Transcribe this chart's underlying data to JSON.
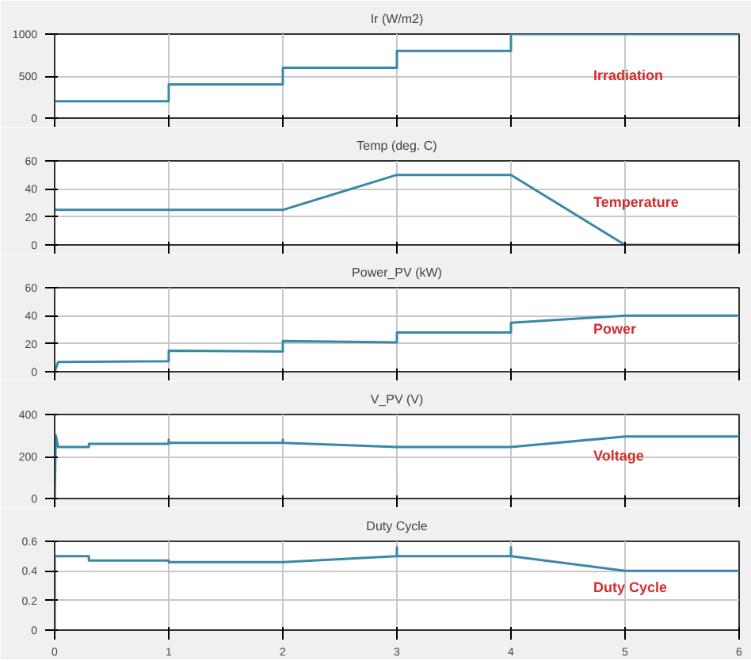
{
  "chart_data": [
    {
      "type": "line",
      "title": "Ir (W/m2)",
      "annotations": [
        "Irradiation"
      ],
      "xlim": [
        0,
        6
      ],
      "xticks": [
        0,
        1,
        2,
        3,
        4,
        5,
        6
      ],
      "ylim": [
        0,
        1000
      ],
      "yticks": [
        0,
        500,
        1000
      ],
      "grid": true,
      "tick_labels": "y",
      "series": [
        {
          "color": "#3a87a8",
          "x": [
            0,
            1,
            1,
            2,
            2,
            3,
            3,
            4,
            4,
            6
          ],
          "values": [
            200,
            200,
            400,
            400,
            600,
            600,
            800,
            800,
            1000,
            1000
          ]
        }
      ]
    },
    {
      "type": "line",
      "title": "Temp (deg. C)",
      "annotations": [
        "Temperature"
      ],
      "xlim": [
        0,
        6
      ],
      "xticks": [
        0,
        1,
        2,
        3,
        4,
        5,
        6
      ],
      "ylim": [
        0,
        60
      ],
      "yticks": [
        0,
        20,
        40,
        60
      ],
      "grid": true,
      "tick_labels": "y",
      "series": [
        {
          "color": "#3a87a8",
          "x": [
            0,
            2,
            3,
            4,
            5,
            6
          ],
          "values": [
            25,
            25,
            50,
            50,
            0,
            0
          ]
        }
      ]
    },
    {
      "type": "line",
      "title": "Power_PV (kW)",
      "annotations": [
        "Power"
      ],
      "xlim": [
        0,
        6
      ],
      "xticks": [
        0,
        1,
        2,
        3,
        4,
        5,
        6
      ],
      "ylim": [
        0,
        60
      ],
      "yticks": [
        0,
        20,
        40,
        60
      ],
      "grid": true,
      "tick_labels": "y",
      "series": [
        {
          "color": "#3a87a8",
          "x": [
            0,
            0.03,
            1,
            1,
            2,
            2,
            3,
            3,
            4,
            4,
            5,
            6
          ],
          "values": [
            0,
            7,
            7.5,
            15,
            14.5,
            22,
            21,
            28,
            28,
            35,
            40,
            40
          ]
        }
      ]
    },
    {
      "type": "line",
      "title": "V_PV (V)",
      "annotations": [
        "Voltage"
      ],
      "xlim": [
        0,
        6
      ],
      "xticks": [
        0,
        1,
        2,
        3,
        4,
        5,
        6
      ],
      "ylim": [
        0,
        400
      ],
      "yticks": [
        0,
        200,
        400
      ],
      "grid": true,
      "tick_labels": "y",
      "series": [
        {
          "color": "#3a87a8",
          "x": [
            0,
            0.01,
            0.03,
            0.3,
            0.3,
            1,
            1,
            1,
            2,
            2,
            2,
            3,
            4,
            5,
            6
          ],
          "values": [
            0,
            300,
            245,
            245,
            260,
            260,
            280,
            265,
            265,
            280,
            265,
            245,
            245,
            295,
            295
          ]
        }
      ]
    },
    {
      "type": "line",
      "title": "Duty Cycle",
      "annotations": [
        "Duty Cycle"
      ],
      "xlim": [
        0,
        6
      ],
      "xticks": [
        0,
        1,
        2,
        3,
        4,
        5,
        6
      ],
      "ylim": [
        0,
        0.6
      ],
      "yticks": [
        0,
        0.2,
        0.4,
        0.6
      ],
      "grid": true,
      "series": [
        {
          "color": "#3a87a8",
          "x": [
            0,
            0,
            0.3,
            0.3,
            1,
            1,
            2,
            3,
            3,
            3,
            4,
            4,
            4,
            5,
            6
          ],
          "values": [
            0,
            0.5,
            0.5,
            0.47,
            0.47,
            0.46,
            0.46,
            0.5,
            0.56,
            0.5,
            0.5,
            0.56,
            0.5,
            0.4,
            0.4
          ]
        }
      ]
    }
  ]
}
